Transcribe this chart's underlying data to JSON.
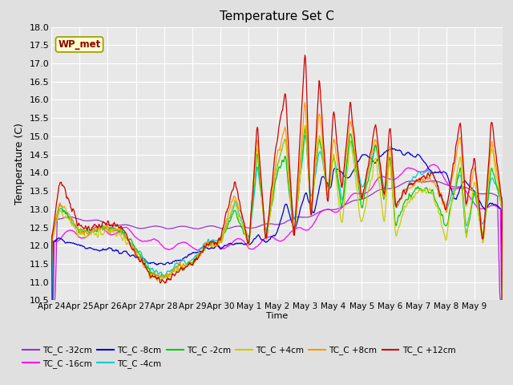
{
  "title": "Temperature Set C",
  "xlabel": "Time",
  "ylabel": "Temperature (C)",
  "ylim": [
    10.5,
    18.0
  ],
  "yticks": [
    10.5,
    11.0,
    11.5,
    12.0,
    12.5,
    13.0,
    13.5,
    14.0,
    14.5,
    15.0,
    15.5,
    16.0,
    16.5,
    17.0,
    17.5,
    18.0
  ],
  "bg_color": "#e8e8e8",
  "wp_met_label": "WP_met",
  "xtick_labels": [
    "Apr 24",
    "Apr 25",
    "Apr 26",
    "Apr 27",
    "Apr 28",
    "Apr 29",
    "Apr 30",
    "May 1",
    "May 2",
    "May 3",
    "May 4",
    "May 5",
    "May 6",
    "May 7",
    "May 8",
    "May 9"
  ],
  "series": [
    {
      "label": "TC_C -32cm",
      "color": "#9933cc"
    },
    {
      "label": "TC_C -16cm",
      "color": "#ff00ff"
    },
    {
      "label": "TC_C -8cm",
      "color": "#0000cc"
    },
    {
      "label": "TC_C -4cm",
      "color": "#00cccc"
    },
    {
      "label": "TC_C -2cm",
      "color": "#00cc00"
    },
    {
      "label": "TC_C +4cm",
      "color": "#cccc00"
    },
    {
      "label": "TC_C +8cm",
      "color": "#ff9900"
    },
    {
      "label": "TC_C +12cm",
      "color": "#cc0000"
    }
  ]
}
